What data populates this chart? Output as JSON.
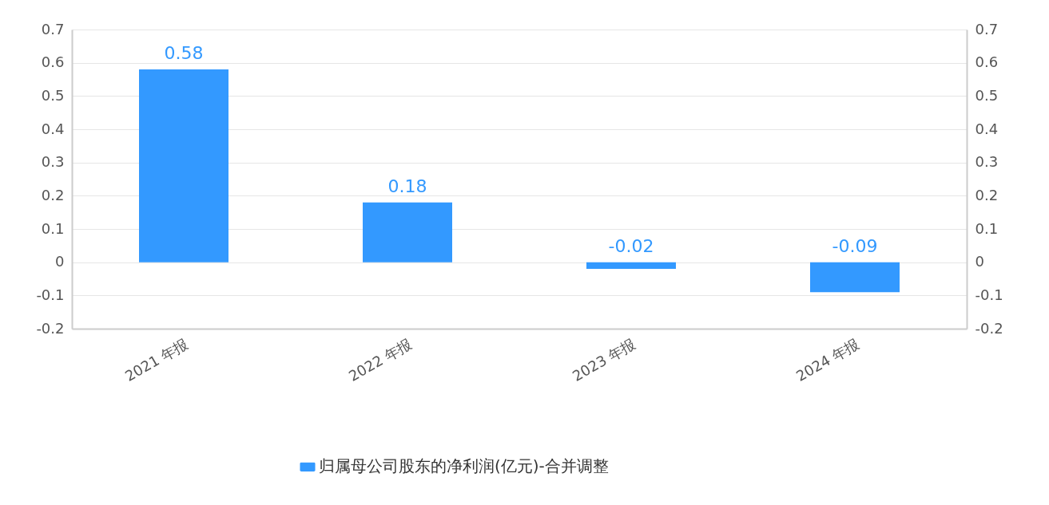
{
  "chart_data": {
    "type": "bar",
    "categories": [
      "2021 年报",
      "2022 年报",
      "2023 年报",
      "2024 年报"
    ],
    "series": [
      {
        "name": "归属母公司股东的净利润(亿元)-合并调整",
        "color": "#3399ff",
        "values": [
          0.58,
          0.18,
          -0.02,
          -0.09
        ]
      }
    ],
    "ylim": [
      -0.2,
      0.7
    ],
    "yticks": [
      -0.2,
      -0.1,
      0,
      0.1,
      0.2,
      0.3,
      0.4,
      0.5,
      0.6,
      0.7
    ],
    "y2lim": [
      -0.2,
      0.7
    ],
    "y2ticks": [
      -0.2,
      -0.1,
      0,
      0.1,
      0.2,
      0.3,
      0.4,
      0.5,
      0.6,
      0.7
    ],
    "data_labels": true,
    "grid": "y",
    "legend": "bottom"
  }
}
